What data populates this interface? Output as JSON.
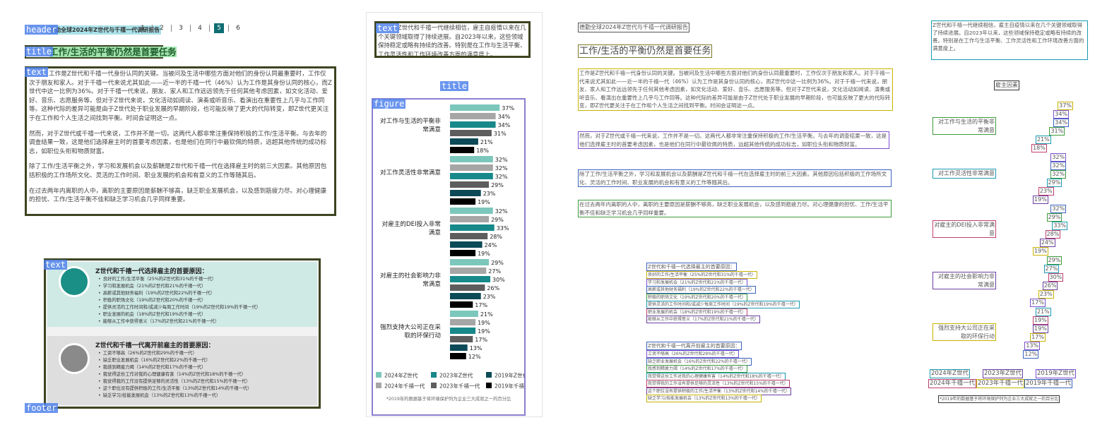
{
  "labels": {
    "header": "header",
    "title": "title",
    "text": "text",
    "figure": "figure",
    "footer": "footer"
  },
  "header": {
    "report": "德勤全球2024年Z世代与千禧一代调研报告",
    "pages": [
      1,
      2,
      3,
      4,
      5,
      6
    ],
    "active_page": 5
  },
  "title": "工作/生活的平衡仍然是首要任务",
  "paragraphs": [
    "工作是Z世代和千禧一代身份认同的关键。当被问及生活中哪些方面对他们的身份认同最重要时，工作仅次于朋友和家人。对于千禧一代来说尤其如此——近一半的千禧一代（46%）认为工作是其身份认同的核心，而Z世代中这一比例为36%。对于千禧一代来说，朋友、家人和工作远远领先于任何其他考虑因素，如文化活动、爱好、音乐、志愿服务等。但对于Z世代来说，文化活动如阅读、演奏或听音乐、看演出在重要性上几乎与工作同等。这种代际的差异可能是由于Z世代处于职业发展的早期阶段，也可能反映了更大的代际转变，即Z世代更关注于在工作和个人生活之间找到平衡。时间会证明这一点。",
    "然而，对于Z世代或千禧一代来说，工作并不是一切。这两代人都非常注重保持积极的工作/生活平衡。与去年的调查结果一致，这是他们选择雇主时的首要考虑因素，也是他们在同行中最钦佩的特质，远超其他传统的成功标志，如职位头衔和物质财富。",
    "除了工作/生活平衡之外，学习和发展机会以及薪酬是Z世代和千禧一代在选择雇主时的前三大因素。其他原因包括积极的工作场所文化、灵活的工作时间、职业发展的机会和有意义的工作等随其后。",
    "在过去两年内离职的人中，离职的主要原因是薪酬不够高，缺乏职业发展机会，以及感到筋疲力尽。对心理健康的担忧、工作/生活平衡不佳和缺乏学习机会几乎同样重要。"
  ],
  "boxes": [
    {
      "title": "Z世代和千禧一代选择雇主的首要原因：",
      "items": [
        "良好的工作/生活平衡（25%的Z世代和31%的千禧一代）",
        "学习和发展机会（21%的Z世代和21%的千禧一代）",
        "高薪或其他财务福利（19%的Z世代和22%的千禧一代）",
        "积极的职场文化（19%的Z世代和20%的千禧一代）",
        "提供灵活的工作时间和/或减少每周工作时间（19%的Z世代和19%的千禧一代）",
        "职业发展的机会（18%的Z世代和19%的千禧一代）",
        "能够从工作中获得意义（17%的Z世代和21%的千禧一代）"
      ]
    },
    {
      "title": "Z世代和千禧一代离开前雇主的首要原因：",
      "items": [
        "工资不够高（26%的Z世代和29%的千禧一代）",
        "缺乏职业发展机会（16%的Z世代和22%的千禧一代）",
        "我感到精疲力竭（14%的Z世代和17%的千禧一代）",
        "我觉得这份工作对我的心理健康有害（14%的Z世代和18%的千禧一代）",
        "我觉得我的工作没有提供足够的灵活性（13%的Z世代和15%的千禧一代）",
        "这个职位没有提供积极的工作/生活平衡（13%的Z世代和14%的千禧一代）",
        "缺乏学习/技能发展机会（13%的Z世代和13%的千禧一代）"
      ]
    }
  ],
  "sidebar": {
    "text": "Z世代和千禧一代继续相信，雇主自疫情以来在几个关键领域取得了持续进展。自2023年以来，这些领域保持稳定或略有持续的改善。特别是在工作与生活平衡、工作灵活性和工作环境改善方面的满意度上。",
    "figure": {
      "type": "bar",
      "title": "雇主因素",
      "categories": [
        "对工作与生活的平衡非常满意",
        "对工作灵活性非常满意",
        "对雇主的DEI投入非常满意",
        "对雇主的社会影响力非常满意",
        "强烈支持大公司正在采取的环保行动"
      ],
      "series": [
        {
          "name": "2024年Z世代",
          "color": "#7cc7bb",
          "values": [
            37,
            32,
            32,
            29,
            21
          ],
          "value_labels": [
            "37%",
            "32%",
            "32%",
            "29%",
            "21%"
          ]
        },
        {
          "name": "2024年千禧一代",
          "color": "#a6a6a6",
          "values": [
            34,
            32,
            29,
            27,
            19
          ],
          "value_labels": [
            "34%",
            "32%",
            "29%",
            "27%",
            "19%"
          ]
        },
        {
          "name": "2023年Z世代",
          "color": "#17898a",
          "values": [
            34,
            32,
            33,
            30,
            19
          ],
          "value_labels": [
            "34%",
            "32%",
            "33%",
            "30%",
            "19%"
          ]
        },
        {
          "name": "2023年千禧一代",
          "color": "#5d5d5d",
          "values": [
            31,
            29,
            28,
            26,
            17
          ],
          "value_labels": [
            "31%",
            "29%",
            "28%",
            "26%",
            "17%"
          ]
        },
        {
          "name": "2019年Z世代",
          "color": "#0c4a57",
          "values": [
            21,
            23,
            24,
            23,
            13
          ],
          "value_labels": [
            "21%",
            "23%",
            "24%",
            "23%",
            "13%"
          ]
        },
        {
          "name": "2019年千禧一代",
          "color": "#000000",
          "values": [
            18,
            19,
            19,
            17,
            12
          ],
          "value_labels": [
            "18%",
            "19%",
            "19%",
            "17%",
            "12%"
          ]
        }
      ]
    },
    "footnote": "*2019年的数据基于将环境保护列为企业三大成就之一的百分比"
  }
}
